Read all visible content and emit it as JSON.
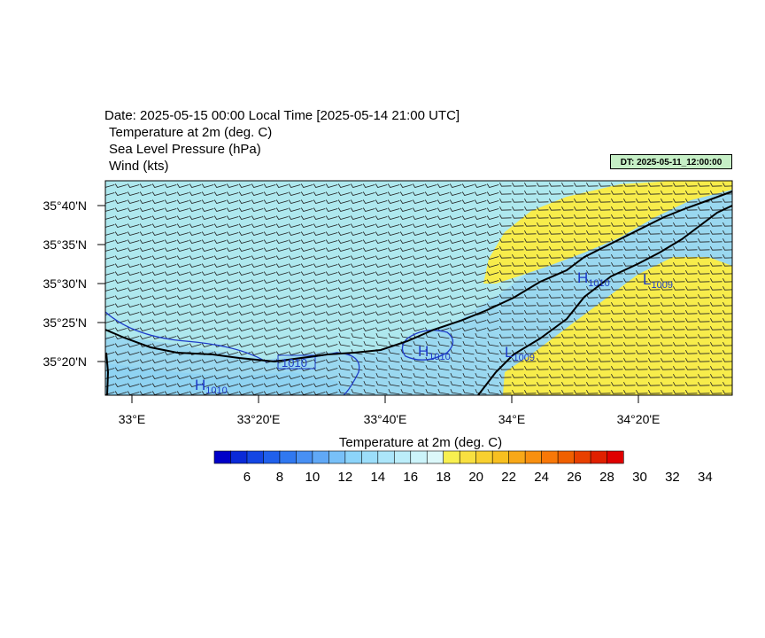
{
  "titles": {
    "line1": "Date: 2025-05-15  00:00 Local Time [2025-05-14  21:00 UTC]",
    "line2": "Temperature at 2m   (deg. C)",
    "line3": "Sea Level Pressure   (hPa)",
    "line4": "Wind   (kts)"
  },
  "dt_badge": "DT: 2025-05-11_12:00:00",
  "axes": {
    "lat_labels": [
      "35°40'N",
      "35°35'N",
      "35°30'N",
      "35°25'N",
      "35°20'N"
    ],
    "lon_labels": [
      "33°E",
      "33°20'E",
      "33°40'E",
      "34°E",
      "34°20'E"
    ]
  },
  "pressure_labels": [
    {
      "text": "H",
      "sub": "1010"
    },
    {
      "text": "1010",
      "sub": ""
    },
    {
      "text": "H",
      "sub": "1010"
    },
    {
      "text": "L",
      "sub": "1009"
    },
    {
      "text": "H",
      "sub": "1010"
    },
    {
      "text": "L",
      "sub": "1009"
    }
  ],
  "colorbar": {
    "title": "Temperature at 2m  (deg. C)",
    "labels": [
      "6",
      "8",
      "10",
      "12",
      "14",
      "16",
      "18",
      "20",
      "22",
      "24",
      "26",
      "28",
      "30",
      "32",
      "34"
    ],
    "colors": [
      "#0000c8",
      "#0a2ad8",
      "#1446e4",
      "#2060ec",
      "#3078f0",
      "#4890f4",
      "#60a8f6",
      "#78c0f8",
      "#8cd4fa",
      "#9cdefa",
      "#acE6fa",
      "#bceefa",
      "#ccf4fa",
      "#dcf8fa",
      "#f8f050",
      "#f8e040",
      "#f8d030",
      "#f8c020",
      "#f8a818",
      "#f89010",
      "#f87808",
      "#f06000",
      "#e84000",
      "#e02000",
      "#e00000"
    ]
  },
  "colors": {
    "sea": "#aee8ee",
    "warm_land": "#f7ec4b",
    "cool_land": "#9ad8f0",
    "isobar": "#1e3cc8",
    "coast": "#000000"
  }
}
